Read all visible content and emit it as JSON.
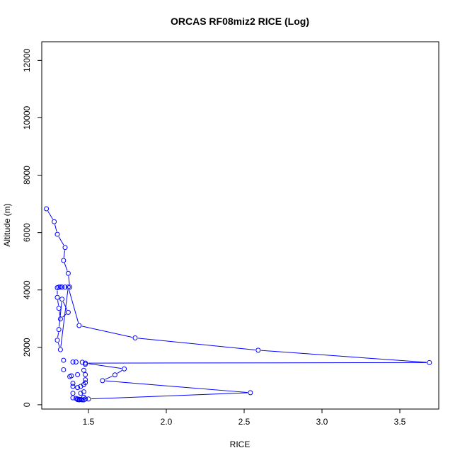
{
  "chart_data": {
    "type": "line",
    "title": "ORCAS RF08miz2 RICE (Log)",
    "xlabel": "RICE",
    "ylabel": "Altitude (m)",
    "xlim": [
      1.2,
      3.75
    ],
    "ylim": [
      -150,
      12650
    ],
    "x_ticks": [
      1.5,
      2.0,
      2.5,
      3.0,
      3.5
    ],
    "x_tick_labels": [
      "1.5",
      "2.0",
      "2.5",
      "3.0",
      "3.5"
    ],
    "y_ticks": [
      0,
      2000,
      4000,
      6000,
      8000,
      10000,
      12000
    ],
    "y_tick_labels": [
      "0",
      "2000",
      "4000",
      "6000",
      "8000",
      "10000",
      "12000"
    ],
    "grid": false,
    "series_color": "#0000ff",
    "marker": "open-circle",
    "series": [
      {
        "x": [
          1.23,
          1.28,
          1.3,
          1.35,
          1.34,
          1.37,
          1.38,
          1.35,
          1.33,
          1.32,
          1.31,
          1.3,
          1.3,
          1.31,
          1.32,
          1.37,
          1.33,
          1.31,
          1.3,
          1.32,
          1.37,
          1.44,
          1.8,
          2.59,
          3.69,
          1.48,
          1.73,
          1.67,
          1.59,
          2.54,
          1.5
        ],
        "y": [
          6830,
          6380,
          5940,
          5480,
          5030,
          4580,
          4100,
          4100,
          4100,
          4100,
          4100,
          4080,
          3740,
          3360,
          2990,
          3220,
          3680,
          2620,
          2250,
          1920,
          4100,
          2760,
          2330,
          1900,
          1470,
          1450,
          1250,
          1040,
          840,
          420,
          200
        ]
      }
    ],
    "extra_points": [
      {
        "x": 1.34,
        "y": 1550
      },
      {
        "x": 1.34,
        "y": 1220
      },
      {
        "x": 1.4,
        "y": 1490
      },
      {
        "x": 1.42,
        "y": 1490
      },
      {
        "x": 1.46,
        "y": 1480
      },
      {
        "x": 1.48,
        "y": 1410
      },
      {
        "x": 1.47,
        "y": 1200
      },
      {
        "x": 1.48,
        "y": 1050
      },
      {
        "x": 1.43,
        "y": 1050
      },
      {
        "x": 1.39,
        "y": 1010
      },
      {
        "x": 1.38,
        "y": 980
      },
      {
        "x": 1.48,
        "y": 870
      },
      {
        "x": 1.48,
        "y": 770
      },
      {
        "x": 1.4,
        "y": 750
      },
      {
        "x": 1.47,
        "y": 700
      },
      {
        "x": 1.4,
        "y": 640
      },
      {
        "x": 1.45,
        "y": 640
      },
      {
        "x": 1.43,
        "y": 600
      },
      {
        "x": 1.47,
        "y": 450
      },
      {
        "x": 1.45,
        "y": 400
      },
      {
        "x": 1.4,
        "y": 400
      },
      {
        "x": 1.4,
        "y": 240
      },
      {
        "x": 1.42,
        "y": 220
      },
      {
        "x": 1.43,
        "y": 200
      },
      {
        "x": 1.44,
        "y": 190
      },
      {
        "x": 1.45,
        "y": 180
      },
      {
        "x": 1.46,
        "y": 170
      },
      {
        "x": 1.47,
        "y": 170
      },
      {
        "x": 1.48,
        "y": 200
      },
      {
        "x": 1.47,
        "y": 260
      },
      {
        "x": 1.44,
        "y": 170
      },
      {
        "x": 1.43,
        "y": 180
      }
    ]
  }
}
